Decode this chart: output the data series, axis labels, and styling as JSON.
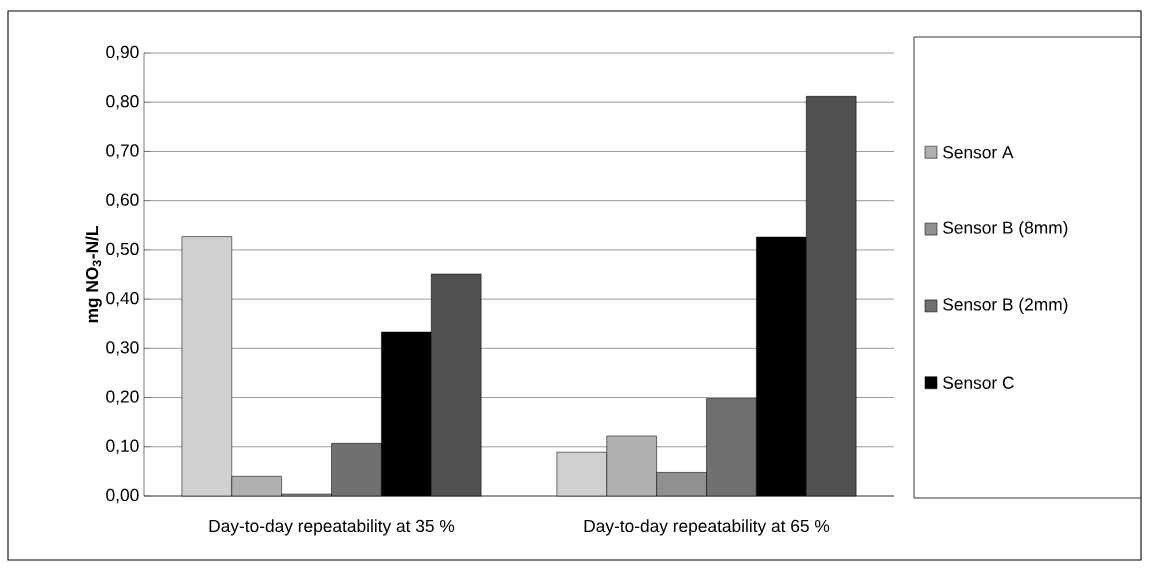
{
  "chart_data": {
    "type": "bar",
    "ylabel": "mg NO$_{3}$-N/L",
    "categories": [
      "Day-to-day repeatability at 35 %",
      "Day-to-day repeatability at 65 %"
    ],
    "series": [
      {
        "color": "#d0d0d0",
        "values": [
          0.527,
          0.089
        ]
      },
      {
        "name": "Sensor A",
        "color": "#b0b0b0",
        "values": [
          0.04,
          0.122
        ]
      },
      {
        "name": "Sensor B (8mm)",
        "color": "#909090",
        "values": [
          0.004,
          0.048
        ]
      },
      {
        "name": "Sensor B (2mm)",
        "color": "#707070",
        "values": [
          0.107,
          0.198
        ]
      },
      {
        "name": "Sensor C",
        "color": "#000000",
        "values": [
          0.333,
          0.526
        ]
      },
      {
        "color": "#505050",
        "values": [
          0.451,
          0.812
        ]
      }
    ],
    "ylim": [
      0,
      0.9
    ],
    "yticks": [
      {
        "value": 0,
        "label": "0,00"
      },
      {
        "value": 0.1,
        "label": "0,10"
      },
      {
        "value": 0.2,
        "label": "0,20"
      },
      {
        "value": 0.3,
        "label": "0,30"
      },
      {
        "value": 0.4,
        "label": "0,40"
      },
      {
        "value": 0.5,
        "label": "0,50"
      },
      {
        "value": 0.6,
        "label": "0,60"
      },
      {
        "value": 0.7,
        "label": "0,70"
      },
      {
        "value": 0.8,
        "label": "0,80"
      },
      {
        "value": 0.9,
        "label": "0,90"
      }
    ],
    "grid": "y",
    "legend": "right"
  }
}
